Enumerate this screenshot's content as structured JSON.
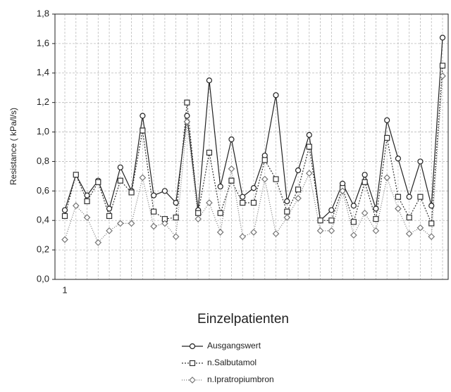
{
  "chart_data": {
    "type": "line",
    "xlabel": "Einzelpatienten",
    "ylabel": "Resistance ( kPa/l/s)",
    "categories": [
      "1",
      null,
      null,
      null,
      null,
      null,
      null,
      null,
      null,
      null,
      null,
      null,
      null,
      null,
      null,
      null,
      null,
      null,
      null,
      null,
      null,
      null,
      null,
      null,
      null,
      null,
      null,
      null,
      null,
      null,
      null,
      null,
      null,
      null,
      null
    ],
    "ylim": [
      0,
      1.8
    ],
    "yticks": [
      {
        "value": 0,
        "label": "0,0"
      },
      {
        "value": 0.2,
        "label": "0,2"
      },
      {
        "value": 0.4,
        "label": "0,4"
      },
      {
        "value": 0.6,
        "label": "0,6"
      },
      {
        "value": 0.8,
        "label": "0,8"
      },
      {
        "value": 1.0,
        "label": "1,0"
      },
      {
        "value": 1.2,
        "label": "1,2"
      },
      {
        "value": 1.4,
        "label": "1,4"
      },
      {
        "value": 1.6,
        "label": "1,6"
      },
      {
        "value": 1.8,
        "label": "1,8"
      }
    ],
    "grid": true,
    "legend": "bottom",
    "series": [
      {
        "name": "Ausgangswert",
        "color": "#222222",
        "marker": "circle",
        "dash": "none",
        "values": [
          0.47,
          0.71,
          0.57,
          0.67,
          0.48,
          0.76,
          0.6,
          1.11,
          0.57,
          0.6,
          0.52,
          1.11,
          0.47,
          1.35,
          0.63,
          0.95,
          0.56,
          0.62,
          0.84,
          1.25,
          0.53,
          0.74,
          0.98,
          0.4,
          0.47,
          0.65,
          0.5,
          0.71,
          0.48,
          1.08,
          0.82,
          0.56,
          0.8,
          0.5,
          1.64
        ]
      },
      {
        "name": "n.Salbutamol",
        "color": "#333333",
        "marker": "square",
        "dash": "2 2",
        "values": [
          0.43,
          0.71,
          0.53,
          0.66,
          0.43,
          0.67,
          0.59,
          1.01,
          0.46,
          0.41,
          0.42,
          1.2,
          0.45,
          0.86,
          0.45,
          0.67,
          0.52,
          0.52,
          0.81,
          0.68,
          0.46,
          0.61,
          0.9,
          0.4,
          0.4,
          0.62,
          0.39,
          0.66,
          0.41,
          0.96,
          0.56,
          0.42,
          0.56,
          0.38,
          1.45
        ]
      },
      {
        "name": "n.Ipratropiumbron",
        "color": "#777777",
        "marker": "diamond",
        "dash": "1 2",
        "values": [
          0.27,
          0.5,
          0.42,
          0.25,
          0.33,
          0.38,
          0.38,
          0.69,
          0.36,
          0.38,
          0.29,
          1.07,
          0.41,
          0.52,
          0.32,
          0.75,
          0.29,
          0.32,
          0.68,
          0.31,
          0.42,
          0.55,
          0.72,
          0.33,
          0.33,
          0.6,
          0.3,
          0.45,
          0.33,
          0.69,
          0.48,
          0.31,
          0.35,
          0.29,
          1.38
        ]
      }
    ]
  }
}
